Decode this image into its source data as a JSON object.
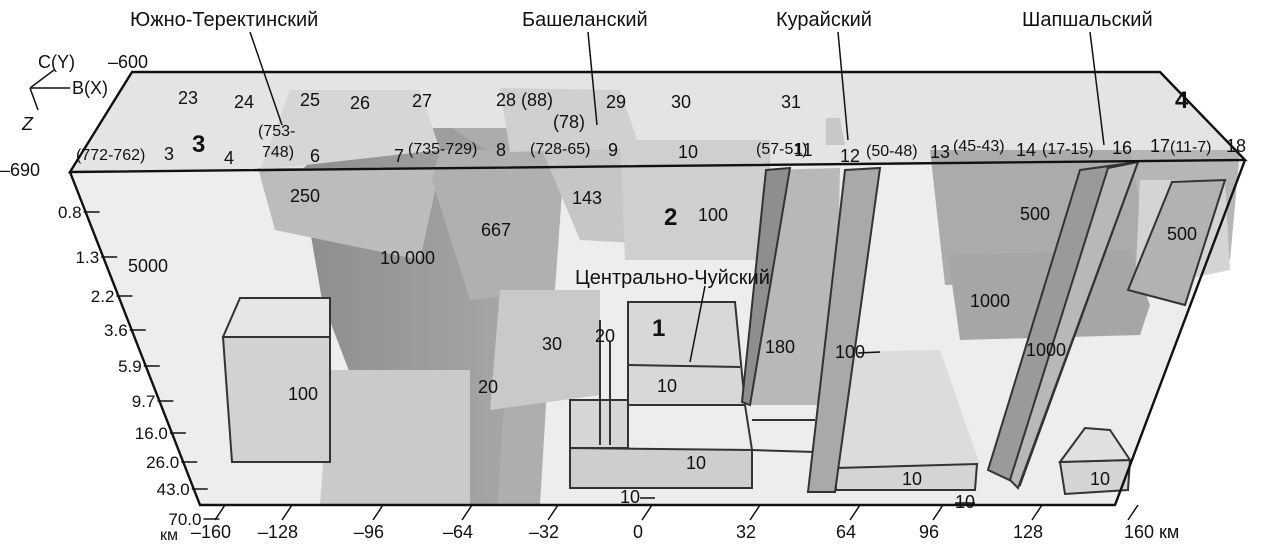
{
  "faults": [
    {
      "id": "south-terekta",
      "name": "Южно-Теректинский"
    },
    {
      "id": "bashelak",
      "name": "Башеланский"
    },
    {
      "id": "kurai",
      "name": "Курайский"
    },
    {
      "id": "shapshal",
      "name": "Шапшальский"
    },
    {
      "id": "central-chuya",
      "name": "Центрально-Чуйский"
    }
  ],
  "axes": {
    "c_axis": "C(Y)",
    "b_axis": "B(X)",
    "z_axis": "Z",
    "y_top": "–600",
    "y_front": "–690",
    "depth_ticks": [
      "0.8",
      "1.3",
      "2.2",
      "3.6",
      "5.9",
      "9.7",
      "16.0",
      "26.0",
      "43.0",
      "70.0"
    ],
    "depth_unit": "км",
    "x_ticks": [
      "–160",
      "–128",
      "–96",
      "–64",
      "–32",
      "0",
      "32",
      "64",
      "96",
      "128",
      "160 км"
    ]
  },
  "block_numbers": [
    "1",
    "2",
    "3",
    "4"
  ],
  "profile_labels": {
    "back": [
      "23",
      "24",
      "25",
      "26",
      "27",
      "28 (88)",
      "(78)",
      "29",
      "30",
      "31"
    ],
    "front": [
      "(772-762)",
      "3",
      "4",
      "(753-\n748)",
      "6",
      "7",
      "(735-729)",
      "8",
      "(728-65)",
      "9",
      "10",
      "(57-51)",
      "11",
      "12",
      "(50-48)",
      "13",
      "(45-43)",
      "14",
      "(17-15)",
      "16",
      "17",
      "(11-7)",
      "18"
    ]
  },
  "values": [
    "250",
    "143",
    "100",
    "667",
    "10 000",
    "5000",
    "500",
    "500",
    "1000",
    "1000",
    "30",
    "20",
    "20",
    "180",
    "100",
    "100",
    "10",
    "10",
    "10",
    "10",
    "10",
    "10"
  ]
}
